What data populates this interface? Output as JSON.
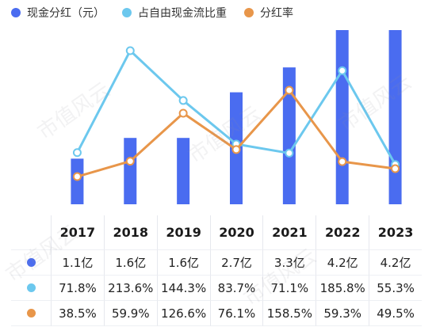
{
  "legend": {
    "cash_dividend": "现金分红（元）",
    "fcf_ratio": "占自由现金流比重",
    "payout_ratio": "分红率"
  },
  "colors": {
    "cash_dividend": "#4a6cf0",
    "fcf_ratio": "#6cc8ee",
    "payout_ratio": "#e8964a"
  },
  "watermark_text": "市值风云",
  "chart_data": {
    "type": "bar",
    "categories": [
      "2017",
      "2018",
      "2019",
      "2020",
      "2021",
      "2022",
      "2023"
    ],
    "series": [
      {
        "name": "现金分红（元）",
        "type": "bar",
        "values": [
          1.1,
          1.6,
          1.6,
          2.7,
          3.3,
          4.2,
          4.2
        ],
        "unit": "亿"
      },
      {
        "name": "占自由现金流比重",
        "type": "line",
        "values": [
          71.8,
          213.6,
          144.3,
          83.7,
          71.1,
          185.8,
          55.3
        ],
        "unit": "%"
      },
      {
        "name": "分红率",
        "type": "line",
        "values": [
          38.5,
          59.9,
          126.6,
          76.1,
          158.5,
          59.3,
          49.5
        ],
        "unit": "%"
      }
    ],
    "table": {
      "header": [
        "2017",
        "2018",
        "2019",
        "2020",
        "2021",
        "2022",
        "2023"
      ],
      "rows": [
        [
          "1.1亿",
          "1.6亿",
          "1.6亿",
          "2.7亿",
          "3.3亿",
          "4.2亿",
          "4.2亿"
        ],
        [
          "71.8%",
          "213.6%",
          "144.3%",
          "83.7%",
          "71.1%",
          "185.8%",
          "55.3%"
        ],
        [
          "38.5%",
          "59.9%",
          "126.6%",
          "76.1%",
          "158.5%",
          "59.3%",
          "49.5%"
        ]
      ]
    },
    "bar_ylim": [
      0,
      4.2
    ],
    "line_ylim": [
      0,
      240
    ],
    "grid": false,
    "legend_position": "top-left"
  }
}
